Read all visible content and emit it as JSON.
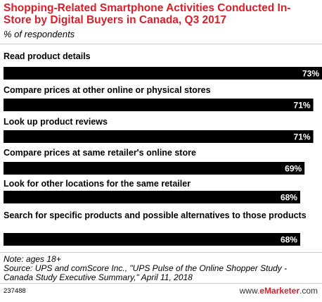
{
  "header": {
    "title": "Shopping-Related Smartphone Activities Conducted In-Store by Digital Buyers in Canada, Q3 2017",
    "subtitle": "% of respondents"
  },
  "chart_data": {
    "type": "bar",
    "orientation": "horizontal",
    "categories": [
      "Read product details",
      "Compare prices at other online or physical stores",
      "Look up product reviews",
      "Compare prices at same retailer's online store",
      "Look for other locations for the same retailer",
      "Search for specific products and possible alternatives to those products"
    ],
    "values": [
      73,
      71,
      71,
      69,
      68,
      68
    ],
    "value_labels": [
      "73%",
      "71%",
      "71%",
      "69%",
      "68%",
      "68%"
    ],
    "bar_color": "#000000",
    "label_color": "#ffffff",
    "grid": false,
    "legend": "none"
  },
  "footer": {
    "note": "Note: ages 18+",
    "source": "Source: UPS and comScore Inc., \"UPS Pulse of the Online Shopper Study - Canada Study Executive Summary,\" April 11, 2018",
    "chart_id": "237488",
    "brand_prefix": "www.",
    "brand_name": "eMarketer",
    "brand_suffix": ".com"
  }
}
